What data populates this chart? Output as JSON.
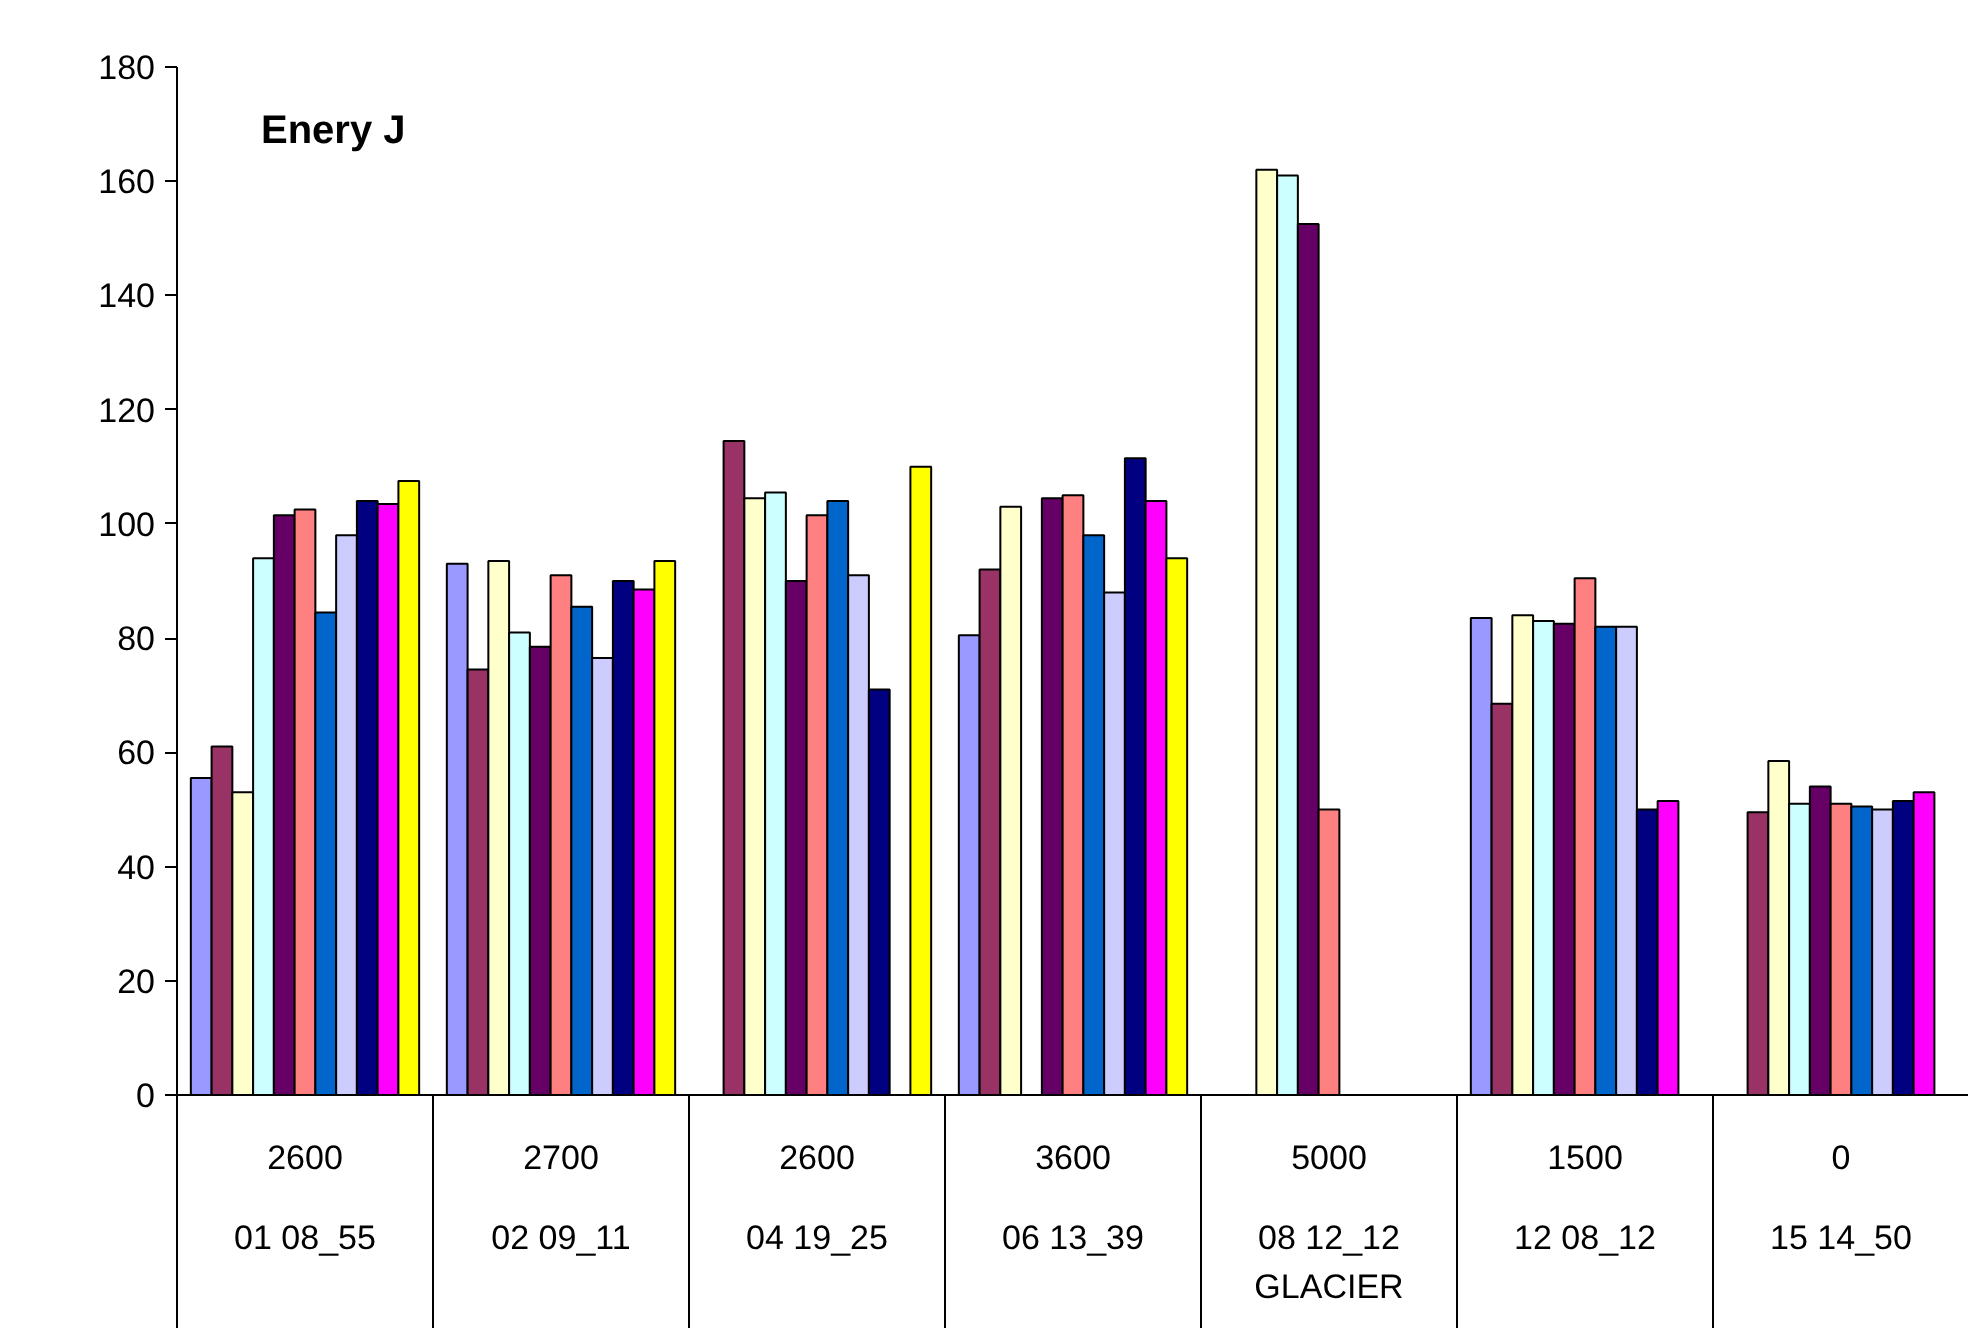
{
  "chart_data": {
    "type": "bar",
    "title": "Enery J",
    "categories": [
      "2600\n01 08_55",
      "2700\n02 09_11",
      "2600\n04 19_25",
      "3600\n06 13_39",
      "5000\n08 12_12\nGLACIER",
      "1500\n12 08_12",
      "0\n15 14_50"
    ],
    "series": [
      {
        "color": "#9999ff",
        "values": [
          55.5,
          93,
          null,
          80.5,
          null,
          83.5,
          null
        ]
      },
      {
        "color": "#993366",
        "values": [
          61,
          74.5,
          114.5,
          92,
          null,
          68.5,
          49.5
        ]
      },
      {
        "color": "#ffffcc",
        "values": [
          53,
          93.5,
          104.5,
          103,
          162,
          84,
          58.5
        ]
      },
      {
        "color": "#ccffff",
        "values": [
          94,
          81,
          105.5,
          null,
          161,
          83,
          51
        ]
      },
      {
        "color": "#660066",
        "values": [
          101.5,
          78.5,
          90,
          104.5,
          152.5,
          82.5,
          54
        ]
      },
      {
        "color": "#ff8080",
        "values": [
          102.5,
          91,
          101.5,
          105,
          50,
          90.5,
          51
        ]
      },
      {
        "color": "#0066cc",
        "values": [
          84.5,
          85.5,
          104,
          98,
          null,
          82,
          50.5
        ]
      },
      {
        "color": "#ccccff",
        "values": [
          98,
          76.5,
          91,
          88,
          null,
          82,
          50
        ]
      },
      {
        "color": "#000080",
        "values": [
          104,
          90,
          71,
          111.5,
          null,
          50,
          51.5
        ]
      },
      {
        "color": "#ff00ff",
        "values": [
          103.5,
          88.5,
          null,
          104,
          null,
          51.5,
          53
        ]
      },
      {
        "color": "#ffff00",
        "values": [
          107.5,
          93.5,
          110,
          94,
          null,
          null,
          null
        ]
      }
    ],
    "ylim": [
      0,
      180
    ],
    "yticks": [
      0,
      20,
      40,
      60,
      80,
      100,
      120,
      140,
      160,
      180
    ],
    "grid": false
  }
}
